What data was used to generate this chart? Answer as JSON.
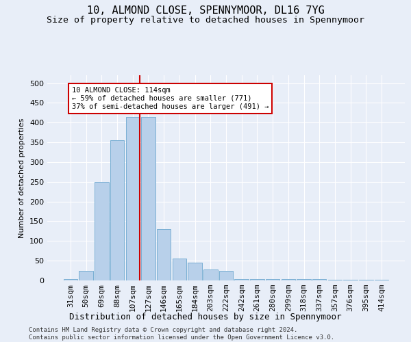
{
  "title": "10, ALMOND CLOSE, SPENNYMOOR, DL16 7YG",
  "subtitle": "Size of property relative to detached houses in Spennymoor",
  "xlabel": "Distribution of detached houses by size in Spennymoor",
  "ylabel": "Number of detached properties",
  "categories": [
    "31sqm",
    "50sqm",
    "69sqm",
    "88sqm",
    "107sqm",
    "127sqm",
    "146sqm",
    "165sqm",
    "184sqm",
    "203sqm",
    "222sqm",
    "242sqm",
    "261sqm",
    "280sqm",
    "299sqm",
    "318sqm",
    "337sqm",
    "357sqm",
    "376sqm",
    "395sqm",
    "414sqm"
  ],
  "values": [
    3,
    25,
    250,
    355,
    415,
    415,
    130,
    55,
    45,
    27,
    25,
    4,
    3,
    4,
    3,
    3,
    3,
    2,
    2,
    2,
    2
  ],
  "bar_color": "#b8d0ea",
  "bar_edge_color": "#7aafd4",
  "vline_color": "#cc0000",
  "vline_pos": 4.45,
  "annotation_text": "10 ALMOND CLOSE: 114sqm\n← 59% of detached houses are smaller (771)\n37% of semi-detached houses are larger (491) →",
  "annotation_box_color": "#ffffff",
  "annotation_box_edge": "#cc0000",
  "background_color": "#e8eef8",
  "plot_background": "#e8eef8",
  "footer_text": "Contains HM Land Registry data © Crown copyright and database right 2024.\nContains public sector information licensed under the Open Government Licence v3.0.",
  "ylim": [
    0,
    520
  ],
  "yticks": [
    0,
    50,
    100,
    150,
    200,
    250,
    300,
    350,
    400,
    450,
    500
  ],
  "title_fontsize": 11,
  "subtitle_fontsize": 9.5,
  "xlabel_fontsize": 9,
  "ylabel_fontsize": 8,
  "tick_fontsize": 8,
  "footer_fontsize": 6.5,
  "annot_fontsize": 7.5
}
